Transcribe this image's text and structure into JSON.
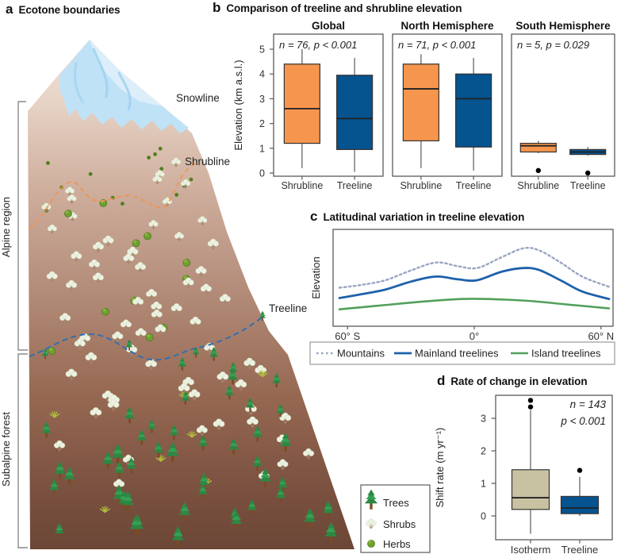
{
  "panel_a": {
    "label": "a",
    "title": "Ecotone boundaries",
    "snowline_label": "Snowline",
    "shrubline_label": "Shrubline",
    "treeline_label": "Treeline",
    "alpine_label": "Alpine region",
    "subalpine_label": "Subalpine forest",
    "legend": {
      "items": [
        {
          "icon": "tree-icon",
          "label": "Trees"
        },
        {
          "icon": "shrub-icon",
          "label": "Shrubs"
        },
        {
          "icon": "herb-icon",
          "label": "Herbs"
        }
      ]
    },
    "colors": {
      "shrubline_dash": "#F0944D",
      "treeline_dash": "#2E6DB4",
      "snow": "#BFE2F6",
      "rock_top": "#F0E2D8",
      "rock_bottom": "#6B4636"
    }
  },
  "chart_data": [
    {
      "id": "b",
      "label": "b",
      "type": "boxplot",
      "title": "Comparison of treeline and shrubline elevation",
      "ylabel": "Elevation (km a.s.l.)",
      "yticks": [
        0,
        1,
        2,
        3,
        4,
        5
      ],
      "ylim": [
        -0.15,
        5.6
      ],
      "categories": [
        "Shrubline",
        "Treeline"
      ],
      "subpanels": [
        {
          "title": "Global",
          "annotation": "n = 76, p < 0.001",
          "boxes": [
            {
              "label": "Shrubline",
              "color": "#F6964E",
              "whisker_low": 0.2,
              "q1": 1.2,
              "median": 2.6,
              "q3": 4.4,
              "whisker_high": 5.0,
              "outliers": []
            },
            {
              "label": "Treeline",
              "color": "#05538F",
              "whisker_low": 0.05,
              "q1": 0.95,
              "median": 2.2,
              "q3": 3.95,
              "whisker_high": 4.65,
              "outliers": []
            }
          ]
        },
        {
          "title": "North Hemisphere",
          "annotation": "n = 71, p < 0.001",
          "boxes": [
            {
              "label": "Shrubline",
              "color": "#F6964E",
              "whisker_low": 0.2,
              "q1": 1.3,
              "median": 3.4,
              "q3": 4.4,
              "whisker_high": 4.8,
              "outliers": []
            },
            {
              "label": "Treeline",
              "color": "#05538F",
              "whisker_low": 0.1,
              "q1": 1.05,
              "median": 3.0,
              "q3": 4.0,
              "whisker_high": 4.65,
              "outliers": []
            }
          ]
        },
        {
          "title": "South Hemisphere",
          "annotation": "n = 5, p = 0.029",
          "boxes": [
            {
              "label": "Shrubline",
              "color": "#F6964E",
              "whisker_low": 0.8,
              "q1": 0.85,
              "median": 1.1,
              "q3": 1.2,
              "whisker_high": 1.3,
              "outliers": [
                0.1
              ]
            },
            {
              "label": "Treeline",
              "color": "#05538F",
              "whisker_low": 0.7,
              "q1": 0.75,
              "median": 0.85,
              "q3": 0.95,
              "whisker_high": 1.05,
              "outliers": [
                0.0
              ]
            }
          ]
        }
      ]
    },
    {
      "id": "c",
      "label": "c",
      "type": "line",
      "title": "Latitudinal variation in treeline elevation",
      "ylabel": "Elevation",
      "xticks": [
        "60° S",
        "0°",
        "60° N"
      ],
      "legend_position": "bottom",
      "grid": false,
      "series": [
        {
          "name": "Mountains",
          "color": "#9AA4C2",
          "style": "dashed",
          "width": 2.4,
          "dash": "2.5 3.5",
          "points": [
            [
              0,
              0.36
            ],
            [
              0.08,
              0.39
            ],
            [
              0.17,
              0.44
            ],
            [
              0.27,
              0.55
            ],
            [
              0.36,
              0.63
            ],
            [
              0.44,
              0.59
            ],
            [
              0.51,
              0.57
            ],
            [
              0.59,
              0.67
            ],
            [
              0.68,
              0.78
            ],
            [
              0.74,
              0.76
            ],
            [
              0.82,
              0.63
            ],
            [
              0.9,
              0.48
            ],
            [
              1,
              0.37
            ]
          ]
        },
        {
          "name": "Mainland treelines",
          "color": "#1D61AB",
          "style": "solid",
          "width": 2.8,
          "points": [
            [
              0,
              0.25
            ],
            [
              0.08,
              0.29
            ],
            [
              0.17,
              0.34
            ],
            [
              0.27,
              0.43
            ],
            [
              0.36,
              0.48
            ],
            [
              0.44,
              0.45
            ],
            [
              0.51,
              0.44
            ],
            [
              0.6,
              0.53
            ],
            [
              0.68,
              0.57
            ],
            [
              0.74,
              0.55
            ],
            [
              0.82,
              0.44
            ],
            [
              0.9,
              0.32
            ],
            [
              1,
              0.24
            ]
          ]
        },
        {
          "name": "Island treelines",
          "color": "#53A05B",
          "style": "solid",
          "width": 2.6,
          "points": [
            [
              0,
              0.13
            ],
            [
              0.15,
              0.17
            ],
            [
              0.3,
              0.21
            ],
            [
              0.45,
              0.24
            ],
            [
              0.55,
              0.24
            ],
            [
              0.7,
              0.22
            ],
            [
              0.85,
              0.18
            ],
            [
              1,
              0.14
            ]
          ]
        }
      ]
    },
    {
      "id": "d",
      "label": "d",
      "type": "boxplot",
      "title": "Rate of change in elevation",
      "annotation": [
        "n = 143",
        "p < 0.001"
      ],
      "ylabel": "Shift rate (m yr⁻¹)",
      "yticks": [
        0,
        1,
        2,
        3
      ],
      "ylim": [
        -0.75,
        3.75
      ],
      "categories": [
        "Isotherm",
        "Treeline"
      ],
      "boxes": [
        {
          "label": "Isotherm",
          "color": "#C9C2A2",
          "whisker_low": -0.55,
          "q1": 0.2,
          "median": 0.56,
          "q3": 1.42,
          "whisker_high": 3.25,
          "outliers": [
            3.35,
            3.55
          ]
        },
        {
          "label": "Treeline",
          "color": "#05538F",
          "whisker_low": 0.0,
          "q1": 0.07,
          "median": 0.24,
          "q3": 0.6,
          "whisker_high": 1.2,
          "outliers": [
            1.4
          ]
        }
      ]
    }
  ]
}
